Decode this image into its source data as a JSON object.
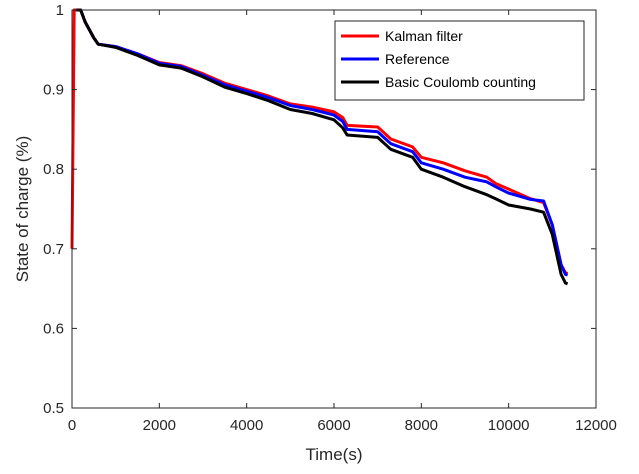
{
  "chart_data": {
    "type": "line",
    "title": "",
    "xlabel": "Time(s)",
    "ylabel": "State of charge (%)",
    "xlim": [
      0,
      12000
    ],
    "ylim": [
      0.5,
      1.0
    ],
    "xticks": [
      0,
      2000,
      4000,
      6000,
      8000,
      10000,
      12000
    ],
    "xtick_labels": [
      "0",
      "2000",
      "4000",
      "6000",
      "8000",
      "10000",
      "12000"
    ],
    "yticks": [
      0.5,
      0.6,
      0.7,
      0.8,
      0.9,
      1.0
    ],
    "ytick_labels": [
      "0.5",
      "0.6",
      "0.7",
      "0.8",
      "0.9",
      "1"
    ],
    "grid": false,
    "legend_position": "top-right",
    "series": [
      {
        "name": "Kalman filter",
        "color": "#ff0000",
        "points": [
          [
            0,
            0.7
          ],
          [
            50,
            1.0
          ],
          [
            200,
            1.0
          ],
          [
            300,
            0.985
          ],
          [
            500,
            0.965
          ],
          [
            600,
            0.957
          ],
          [
            1000,
            0.954
          ],
          [
            1500,
            0.945
          ],
          [
            2000,
            0.934
          ],
          [
            2500,
            0.93
          ],
          [
            3000,
            0.92
          ],
          [
            3500,
            0.908
          ],
          [
            4000,
            0.9
          ],
          [
            4500,
            0.892
          ],
          [
            5000,
            0.882
          ],
          [
            5500,
            0.878
          ],
          [
            6000,
            0.872
          ],
          [
            6200,
            0.865
          ],
          [
            6300,
            0.855
          ],
          [
            7000,
            0.853
          ],
          [
            7300,
            0.838
          ],
          [
            7800,
            0.828
          ],
          [
            8000,
            0.815
          ],
          [
            8500,
            0.808
          ],
          [
            9000,
            0.798
          ],
          [
            9500,
            0.79
          ],
          [
            9700,
            0.782
          ],
          [
            10000,
            0.775
          ],
          [
            10500,
            0.763
          ],
          [
            10800,
            0.758
          ],
          [
            11000,
            0.73
          ],
          [
            11200,
            0.68
          ],
          [
            11300,
            0.67
          ],
          [
            11350,
            0.669
          ]
        ]
      },
      {
        "name": "Reference",
        "color": "#0000ff",
        "points": [
          [
            100,
            1.0
          ],
          [
            200,
            1.0
          ],
          [
            300,
            0.985
          ],
          [
            500,
            0.965
          ],
          [
            600,
            0.957
          ],
          [
            1000,
            0.954
          ],
          [
            1500,
            0.945
          ],
          [
            2000,
            0.933
          ],
          [
            2500,
            0.929
          ],
          [
            3000,
            0.918
          ],
          [
            3500,
            0.906
          ],
          [
            4000,
            0.898
          ],
          [
            4500,
            0.89
          ],
          [
            5000,
            0.88
          ],
          [
            5500,
            0.875
          ],
          [
            6000,
            0.868
          ],
          [
            6200,
            0.86
          ],
          [
            6300,
            0.85
          ],
          [
            7000,
            0.847
          ],
          [
            7300,
            0.832
          ],
          [
            7800,
            0.822
          ],
          [
            8000,
            0.808
          ],
          [
            8500,
            0.8
          ],
          [
            9000,
            0.79
          ],
          [
            9500,
            0.784
          ],
          [
            9700,
            0.778
          ],
          [
            10000,
            0.77
          ],
          [
            10500,
            0.762
          ],
          [
            10800,
            0.76
          ],
          [
            11000,
            0.73
          ],
          [
            11200,
            0.68
          ],
          [
            11300,
            0.668
          ],
          [
            11350,
            0.667
          ]
        ]
      },
      {
        "name": "Basic Coulomb counting",
        "color": "#000000",
        "points": [
          [
            100,
            1.0
          ],
          [
            200,
            1.0
          ],
          [
            300,
            0.985
          ],
          [
            500,
            0.965
          ],
          [
            600,
            0.957
          ],
          [
            1000,
            0.953
          ],
          [
            1500,
            0.943
          ],
          [
            2000,
            0.931
          ],
          [
            2500,
            0.927
          ],
          [
            3000,
            0.916
          ],
          [
            3500,
            0.903
          ],
          [
            4000,
            0.895
          ],
          [
            4500,
            0.886
          ],
          [
            5000,
            0.875
          ],
          [
            5500,
            0.87
          ],
          [
            6000,
            0.862
          ],
          [
            6200,
            0.852
          ],
          [
            6300,
            0.843
          ],
          [
            7000,
            0.84
          ],
          [
            7300,
            0.825
          ],
          [
            7800,
            0.815
          ],
          [
            8000,
            0.8
          ],
          [
            8500,
            0.79
          ],
          [
            9000,
            0.778
          ],
          [
            9500,
            0.768
          ],
          [
            9700,
            0.763
          ],
          [
            10000,
            0.755
          ],
          [
            10500,
            0.75
          ],
          [
            10800,
            0.746
          ],
          [
            11000,
            0.718
          ],
          [
            11200,
            0.668
          ],
          [
            11300,
            0.657
          ],
          [
            11350,
            0.656
          ]
        ]
      }
    ]
  }
}
